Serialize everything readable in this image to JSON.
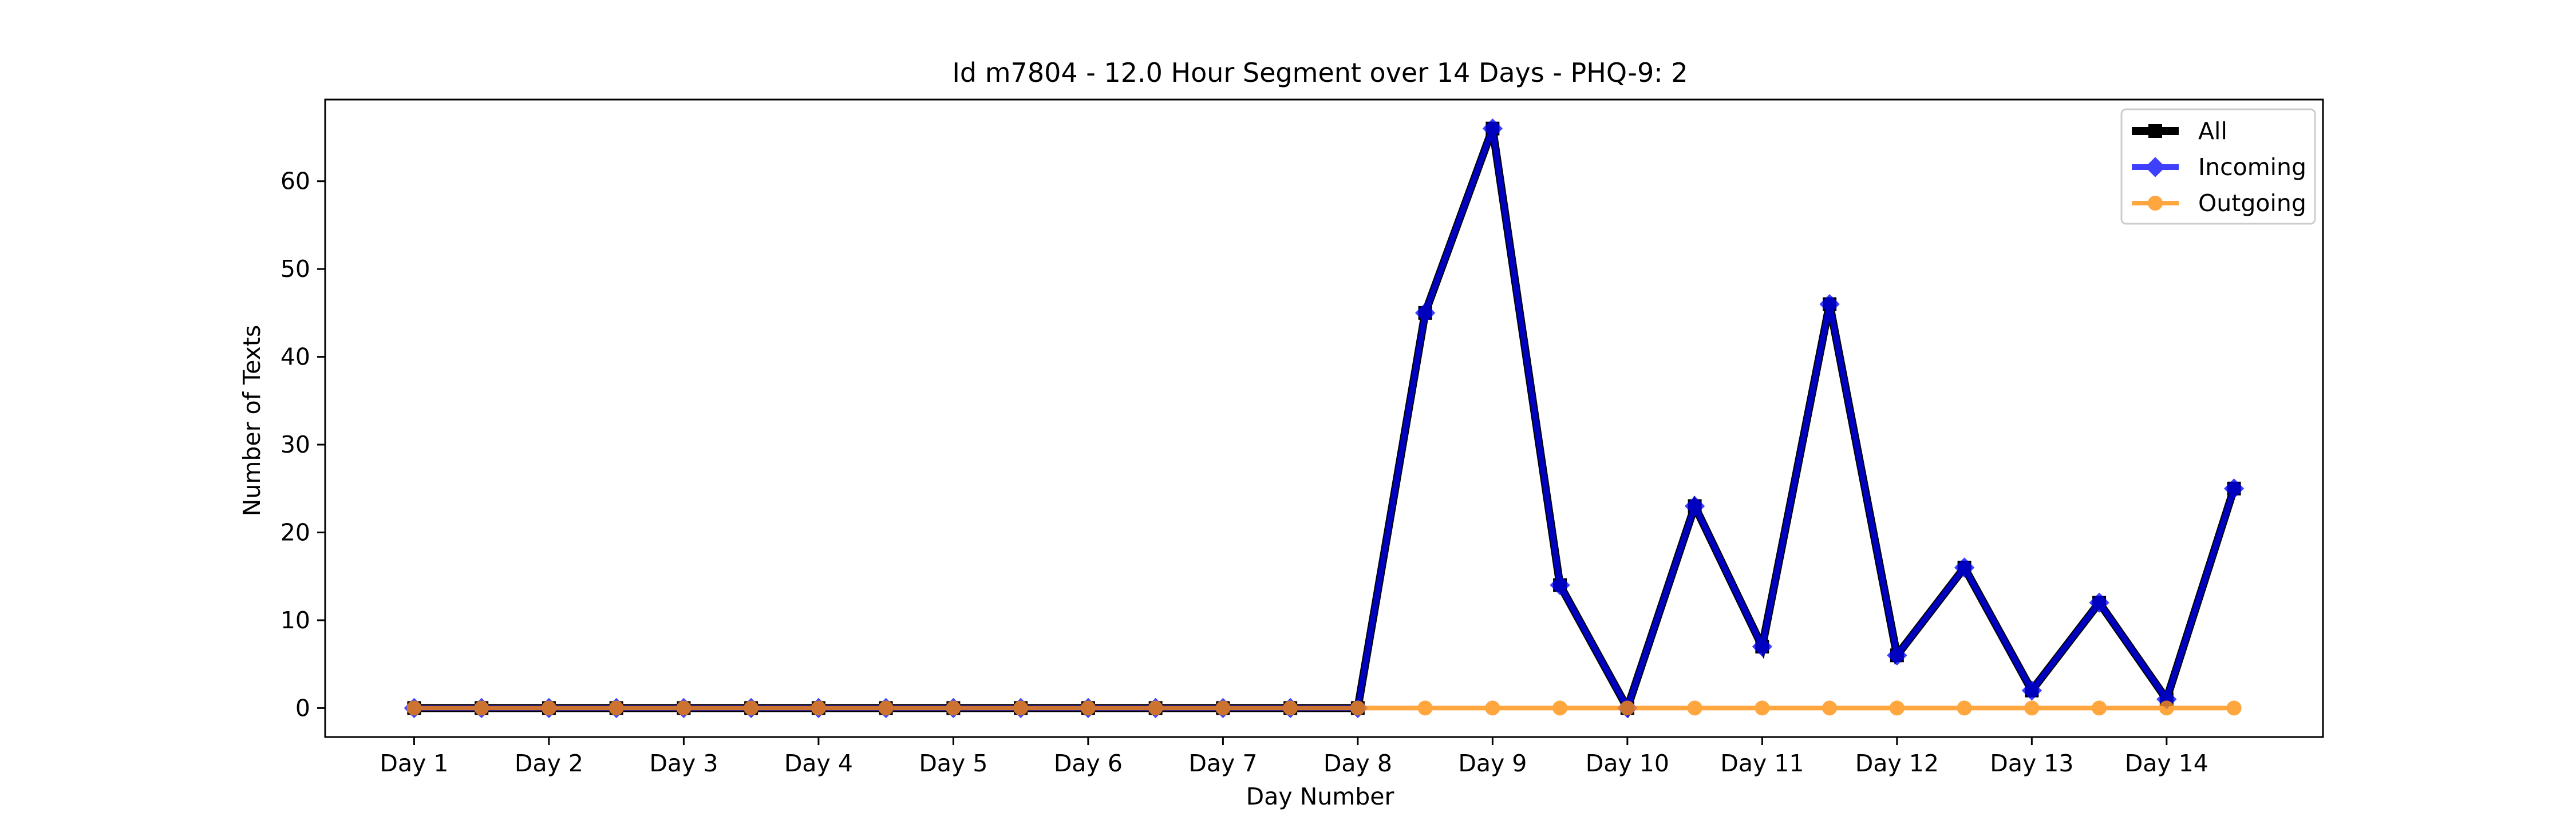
{
  "chart_data": {
    "type": "line",
    "title": "Id m7804 - 12.0 Hour Segment over 14 Days - PHQ-9: 2",
    "xlabel": "Day Number",
    "ylabel": "Number of Texts",
    "x_tick_labels": [
      "Day 1",
      "Day 2",
      "Day 3",
      "Day 4",
      "Day 5",
      "Day 6",
      "Day 7",
      "Day 8",
      "Day 9",
      "Day 10",
      "Day 11",
      "Day 12",
      "Day 13",
      "Day 14"
    ],
    "y_ticks": [
      0,
      10,
      20,
      30,
      40,
      50,
      60
    ],
    "ylim": [
      -3.3,
      69.3
    ],
    "xlim": [
      0.34,
      15.16
    ],
    "grid": false,
    "legend_position": "top-right",
    "x": [
      1,
      1.5,
      2,
      2.5,
      3,
      3.5,
      4,
      4.5,
      5,
      5.5,
      6,
      6.5,
      7,
      7.5,
      8,
      8.5,
      9,
      9.5,
      10,
      10.5,
      11,
      11.5,
      12,
      12.5,
      13,
      13.5,
      14,
      14.5
    ],
    "series": [
      {
        "name": "All",
        "color": "#000000",
        "marker": "square",
        "values": [
          0,
          0,
          0,
          0,
          0,
          0,
          0,
          0,
          0,
          0,
          0,
          0,
          0,
          0,
          0,
          45,
          66,
          14,
          0,
          23,
          7,
          46,
          6,
          16,
          2,
          12,
          1,
          25
        ]
      },
      {
        "name": "Incoming",
        "color": "#0000ff",
        "marker": "diamond",
        "values": [
          0,
          0,
          0,
          0,
          0,
          0,
          0,
          0,
          0,
          0,
          0,
          0,
          0,
          0,
          0,
          45,
          66,
          14,
          0,
          23,
          7,
          46,
          6,
          16,
          2,
          12,
          1,
          25
        ]
      },
      {
        "name": "Outgoing",
        "color": "#ff9010",
        "marker": "circle",
        "values": [
          0,
          0,
          0,
          0,
          0,
          0,
          0,
          0,
          0,
          0,
          0,
          0,
          0,
          0,
          0,
          0,
          0,
          0,
          0,
          0,
          0,
          0,
          0,
          0,
          0,
          0,
          0,
          0
        ]
      }
    ]
  }
}
